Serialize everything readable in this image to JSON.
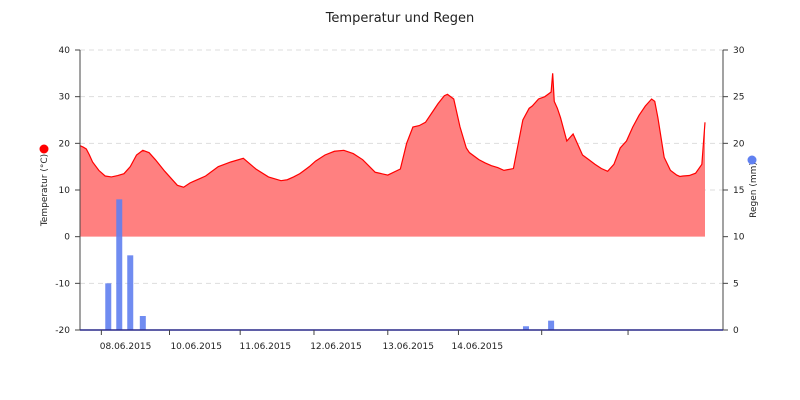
{
  "chart_data": {
    "type": "area",
    "title": "Temperatur und Regen",
    "x_tick_labels": [
      "08.06.2015",
      "10.06.2015",
      "11.06.2015",
      "12.06.2015",
      "13.06.2015",
      "14.06.2015"
    ],
    "x_range": [
      "07.06.2015 15:00",
      "14.06.2015 22:00"
    ],
    "y_left": {
      "label": "Temperatur (°C)",
      "ticks": [
        "40",
        "30",
        "20",
        "10",
        "0",
        "-10",
        "-20"
      ],
      "lim": [
        -20,
        40
      ]
    },
    "y_right": {
      "label": "Regen (mm)",
      "ticks": [
        "30",
        "25",
        "20",
        "15",
        "10",
        "5",
        "0"
      ],
      "lim": [
        0,
        30
      ]
    },
    "grid": true,
    "series": [
      {
        "kind": "area",
        "color": "#ff0000",
        "fill": "#ff8080",
        "x_hours": [
          0,
          1,
          2,
          3,
          4,
          6,
          8,
          10,
          12,
          14,
          16,
          18,
          20,
          22,
          24,
          27,
          29,
          31,
          33,
          35,
          36,
          38,
          40,
          44,
          46,
          48,
          52,
          56,
          60,
          64,
          66,
          68,
          70,
          72,
          73,
          75,
          78,
          81,
          84,
          87,
          90,
          94,
          98,
          102,
          104,
          106,
          108,
          110,
          112,
          114,
          116,
          117,
          119,
          121,
          123,
          124,
          127,
          129,
          131,
          133,
          135,
          138,
          141,
          143,
          144,
          146,
          148,
          150,
          150.5,
          151,
          152,
          153,
          155,
          157,
          160,
          162,
          164,
          166,
          168,
          170,
          172,
          174,
          176,
          178,
          180,
          182,
          183,
          184,
          186,
          188,
          190,
          191,
          192,
          194,
          196,
          198,
          199
        ],
        "values": [
          19.5,
          19.2,
          18.8,
          17.5,
          16.0,
          14.2,
          13.0,
          12.8,
          13.1,
          13.5,
          15.0,
          17.5,
          18.5,
          18.0,
          16.5,
          14.0,
          12.5,
          11.0,
          10.6,
          11.5,
          11.8,
          12.4,
          13.0,
          15.0,
          15.5,
          16.0,
          16.8,
          14.5,
          12.8,
          12.0,
          12.2,
          12.8,
          13.5,
          14.5,
          15.0,
          16.2,
          17.5,
          18.3,
          18.5,
          17.8,
          16.5,
          13.8,
          13.2,
          14.5,
          20.0,
          23.5,
          23.8,
          24.5,
          26.5,
          28.5,
          30.2,
          30.5,
          29.5,
          23.5,
          19.0,
          18.0,
          16.5,
          15.8,
          15.2,
          14.8,
          14.2,
          14.6,
          25.0,
          27.5,
          28.0,
          29.5,
          30.0,
          31.0,
          35.0,
          29.0,
          27.5,
          25.5,
          20.5,
          22.0,
          17.5,
          16.5,
          15.5,
          14.6,
          14.0,
          15.5,
          19.0,
          20.5,
          23.5,
          26.0,
          28.0,
          29.5,
          29.0,
          25.5,
          17.0,
          14.2,
          13.2,
          12.9,
          13.0,
          13.1,
          13.6,
          15.5,
          24.5
        ]
      },
      {
        "kind": "bar",
        "color": "#6080f0",
        "x_hours": [
          9,
          12.5,
          16,
          20,
          142,
          150
        ],
        "values": [
          5.0,
          14.0,
          8.0,
          1.5,
          0.4,
          1.0
        ]
      }
    ],
    "legend_markers": [
      {
        "side": "left",
        "color": "#ff0000"
      },
      {
        "side": "right",
        "color": "#6080f0"
      }
    ]
  }
}
